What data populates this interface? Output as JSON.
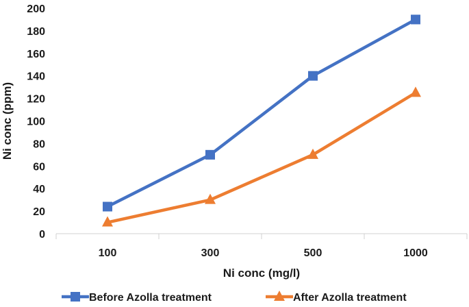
{
  "chart_data": {
    "type": "line",
    "title": "",
    "xlabel": "Ni conc (mg/l)",
    "ylabel": "Ni conc (ppm)",
    "categories": [
      "100",
      "300",
      "500",
      "1000"
    ],
    "ylim": [
      0,
      200
    ],
    "yticks": [
      0,
      20,
      40,
      60,
      80,
      100,
      120,
      140,
      160,
      180,
      200
    ],
    "grid": false,
    "legend_position": "bottom",
    "series": [
      {
        "name": "Before Azolla treatment",
        "values": [
          24,
          70,
          140,
          190
        ],
        "color": "#4472C4",
        "marker": "square"
      },
      {
        "name": "After Azolla treatment",
        "values": [
          10,
          30,
          70,
          125
        ],
        "color": "#ED7D31",
        "marker": "triangle"
      }
    ]
  }
}
